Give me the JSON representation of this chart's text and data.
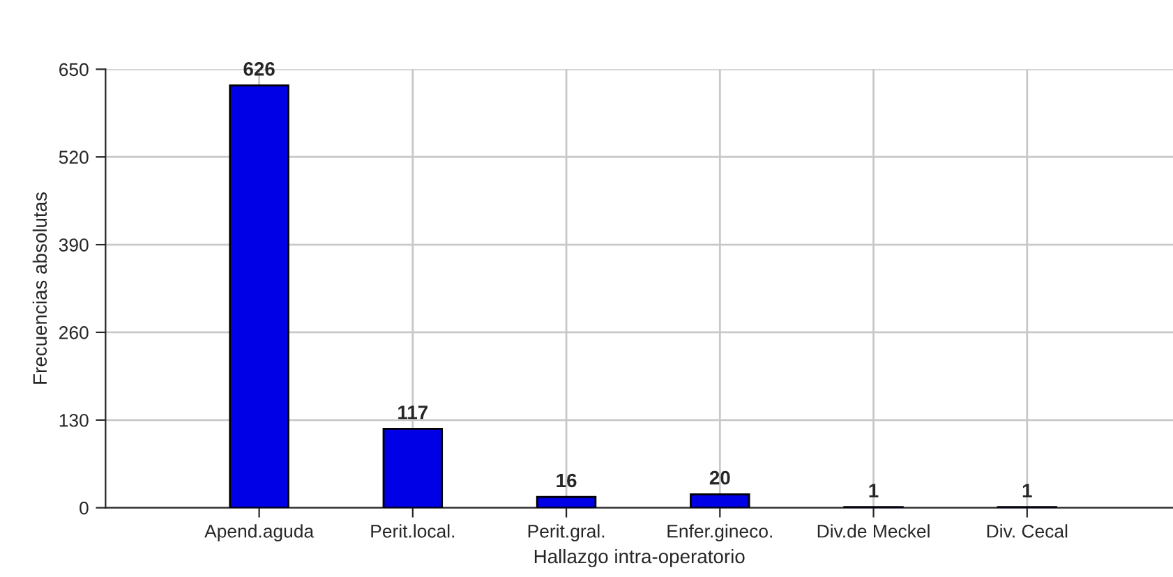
{
  "chart_data": {
    "type": "bar",
    "xlabel": "Hallazgo intra-operatorio",
    "ylabel": "Frecuencias absolutas",
    "categories": [
      "Apend.aguda",
      "Perit.local.",
      "Perit.gral.",
      "Enfer.gineco.",
      "Div.de Meckel",
      "Div. Cecal"
    ],
    "values": [
      626,
      117,
      16,
      20,
      1,
      1
    ],
    "color": "#0000e6",
    "ylim": [
      0,
      650
    ],
    "yticks": [
      0,
      130,
      260,
      390,
      520,
      650
    ],
    "grid": true,
    "data_labels": true
  }
}
